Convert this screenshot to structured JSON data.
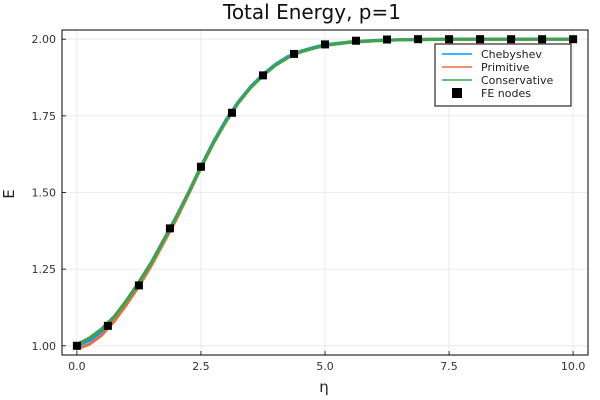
{
  "chart_data": {
    "type": "line",
    "title": "Total Energy, p=1",
    "xlabel": "η",
    "ylabel": "E",
    "xlim": [
      -0.3,
      10.3
    ],
    "ylim": [
      0.97,
      2.03
    ],
    "xticks": [
      0,
      2.5,
      5,
      7.5,
      10
    ],
    "xtick_labels": [
      "0.0",
      "2.5",
      "5.0",
      "7.5",
      "10.0"
    ],
    "yticks": [
      1.0,
      1.25,
      1.5,
      1.75,
      2.0
    ],
    "ytick_labels": [
      "1.00",
      "1.25",
      "1.50",
      "1.75",
      "2.00"
    ],
    "grid": true,
    "legend_position": "top-right",
    "x": [
      0,
      0.25,
      0.5,
      0.75,
      1.0,
      1.25,
      1.5,
      1.75,
      2.0,
      2.25,
      2.5,
      2.75,
      3.0,
      3.25,
      3.5,
      3.75,
      4.0,
      4.25,
      4.5,
      4.75,
      5.0,
      5.5,
      6.0,
      6.5,
      7.0,
      7.5,
      8.0,
      8.5,
      9.0,
      9.5,
      10.0
    ],
    "series": [
      {
        "name": "Chebyshev",
        "color": "#009AFA",
        "style": "line",
        "values": [
          1.0,
          1.018,
          1.048,
          1.09,
          1.145,
          1.205,
          1.27,
          1.345,
          1.42,
          1.5,
          1.585,
          1.665,
          1.735,
          1.795,
          1.845,
          1.885,
          1.918,
          1.943,
          1.96,
          1.972,
          1.982,
          1.991,
          1.996,
          1.998,
          1.999,
          2.0,
          2.0,
          2.0,
          2.0,
          2.0,
          2.0
        ]
      },
      {
        "name": "Primitive",
        "color": "#E26F46",
        "style": "line",
        "values": [
          0.99,
          1.005,
          1.035,
          1.08,
          1.135,
          1.195,
          1.262,
          1.337,
          1.412,
          1.495,
          1.58,
          1.66,
          1.73,
          1.792,
          1.842,
          1.882,
          1.915,
          1.94,
          1.958,
          1.97,
          1.98,
          1.99,
          1.995,
          1.998,
          1.999,
          2.0,
          2.0,
          2.0,
          2.0,
          2.0,
          2.0
        ]
      },
      {
        "name": "Conservative",
        "color": "#3DA44D",
        "style": "line",
        "values": [
          1.005,
          1.025,
          1.055,
          1.095,
          1.148,
          1.208,
          1.272,
          1.346,
          1.42,
          1.5,
          1.583,
          1.662,
          1.732,
          1.792,
          1.842,
          1.882,
          1.915,
          1.94,
          1.958,
          1.97,
          1.98,
          1.99,
          1.995,
          1.998,
          1.999,
          2.0,
          2.0,
          2.0,
          2.0,
          2.0,
          2.0
        ]
      }
    ],
    "markers": {
      "name": "FE nodes",
      "color": "#000000",
      "x": [
        0.0,
        0.625,
        1.25,
        1.875,
        2.5,
        3.125,
        3.75,
        4.375,
        5.0,
        5.625,
        6.25,
        6.875,
        7.5,
        8.125,
        8.75,
        9.375,
        10.0
      ],
      "y": [
        1.0,
        1.065,
        1.197,
        1.383,
        1.584,
        1.76,
        1.882,
        1.952,
        1.983,
        1.995,
        1.999,
        2.0,
        2.0,
        2.0,
        2.0,
        2.0,
        2.0
      ]
    }
  }
}
